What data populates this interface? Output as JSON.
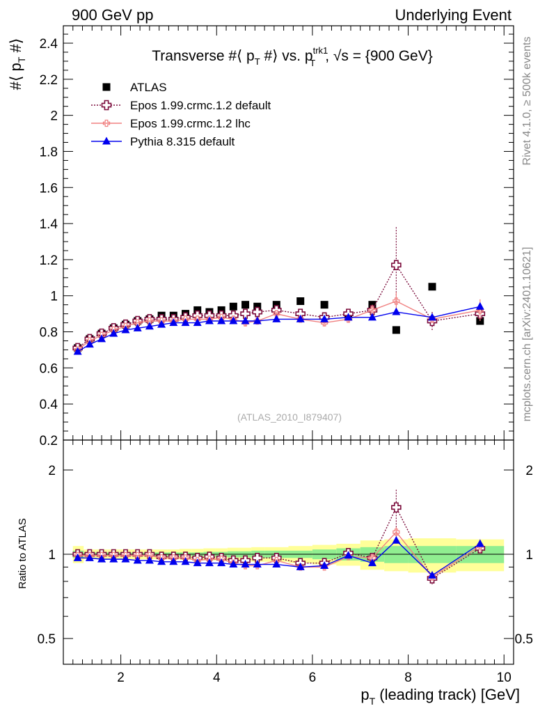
{
  "header": {
    "left": "900 GeV pp",
    "right": "Underlying Event"
  },
  "side_labels": {
    "rivet": "Rivet 4.1.0, ≥ 500k events",
    "mcplots": "mcplots.cern.ch [arXiv:2401.10621]"
  },
  "chart_data": [
    {
      "panel": "main",
      "type": "scatter",
      "title": {
        "prefix": "Transverse #⟨ p",
        "p_sub": "T",
        "mid": " #⟩ vs. p",
        "sup": "trk1",
        "sub2": "T",
        "suffix": ", √s = {900 GeV}"
      },
      "ylabel": {
        "main": "#⟨ p",
        "sub": "T",
        "end": " #⟩"
      },
      "xlim": [
        0.8,
        10.2
      ],
      "ylim": [
        0.2,
        2.5
      ],
      "yticks": [
        0.2,
        0.4,
        0.6,
        0.8,
        1,
        1.2,
        1.4,
        1.6,
        1.8,
        2,
        2.2,
        2.4
      ],
      "ytick_labels": [
        "0.2",
        "0.4",
        "0.6",
        "0.8",
        "1",
        "1.2",
        "1.4",
        "1.6",
        "1.8",
        "2",
        "2.2",
        "2.4"
      ],
      "watermark": "(ATLAS_2010_I879407)",
      "x": [
        1.1,
        1.35,
        1.6,
        1.85,
        2.1,
        2.35,
        2.6,
        2.85,
        3.1,
        3.35,
        3.6,
        3.85,
        4.1,
        4.35,
        4.6,
        4.85,
        5.25,
        5.75,
        6.25,
        6.75,
        7.25,
        7.75,
        8.5,
        9.5
      ],
      "series": [
        {
          "name": "ATLAS",
          "color": "#000000",
          "marker": "square",
          "values": [
            0.71,
            0.76,
            0.79,
            0.82,
            0.84,
            0.86,
            0.87,
            0.89,
            0.89,
            0.9,
            0.92,
            0.91,
            0.92,
            0.94,
            0.95,
            0.94,
            0.95,
            0.97,
            0.95,
            0.89,
            0.95,
            0.81,
            1.05,
            0.86
          ]
        },
        {
          "name": "Epos 1.99.crmc.1.2 default",
          "color": "#7a0a3a",
          "marker": "open-cross",
          "line": "dotted",
          "values": [
            0.71,
            0.76,
            0.79,
            0.82,
            0.84,
            0.86,
            0.87,
            0.87,
            0.87,
            0.88,
            0.89,
            0.89,
            0.89,
            0.89,
            0.9,
            0.91,
            0.92,
            0.9,
            0.88,
            0.9,
            0.92,
            1.17,
            0.86,
            0.9
          ],
          "errors": [
            0,
            0,
            0,
            0,
            0,
            0,
            0,
            0,
            0,
            0,
            0,
            0,
            0,
            0,
            0,
            0,
            0,
            0,
            0,
            0,
            0.02,
            0.21,
            0.05,
            0.02
          ]
        },
        {
          "name": "Epos 1.99.crmc.1.2 lhc",
          "color": "#f08080",
          "marker": "small-cross",
          "line": "solid",
          "values": [
            0.7,
            0.75,
            0.78,
            0.81,
            0.83,
            0.85,
            0.86,
            0.86,
            0.86,
            0.87,
            0.87,
            0.87,
            0.88,
            0.87,
            0.85,
            0.86,
            0.9,
            0.87,
            0.85,
            0.87,
            0.92,
            0.97,
            0.87,
            0.92
          ],
          "errors": [
            0,
            0,
            0,
            0,
            0,
            0,
            0,
            0,
            0,
            0,
            0,
            0,
            0,
            0,
            0.02,
            0.02,
            0.01,
            0.01,
            0.02,
            0.02,
            0.03,
            0.05,
            0.02,
            0.06
          ]
        },
        {
          "name": "Pythia 8.315 default",
          "color": "#0000ee",
          "marker": "triangle",
          "line": "solid",
          "values": [
            0.69,
            0.73,
            0.76,
            0.79,
            0.81,
            0.82,
            0.83,
            0.84,
            0.85,
            0.85,
            0.85,
            0.86,
            0.86,
            0.86,
            0.86,
            0.86,
            0.87,
            0.87,
            0.87,
            0.88,
            0.88,
            0.91,
            0.88,
            0.94
          ],
          "errors": [
            0,
            0,
            0,
            0,
            0,
            0,
            0,
            0,
            0,
            0,
            0,
            0,
            0,
            0,
            0,
            0,
            0,
            0,
            0,
            0,
            0,
            0,
            0,
            0
          ]
        }
      ]
    },
    {
      "panel": "ratio",
      "type": "scatter",
      "ylabel": "Ratio to ATLAS",
      "xlabel": {
        "p": "p",
        "sub": "T",
        "rest": " (leading track) [GeV]"
      },
      "scale": "log",
      "ylim": [
        0.4,
        2.4
      ],
      "yticks": [
        0.5,
        1,
        2
      ],
      "ytick_labels": [
        "0.5",
        "1",
        "2"
      ],
      "xticks": [
        2,
        4,
        6,
        8,
        10
      ],
      "xtick_labels": [
        "2",
        "4",
        "6",
        "8",
        "10"
      ],
      "x": [
        1.1,
        1.35,
        1.6,
        1.85,
        2.1,
        2.35,
        2.6,
        2.85,
        3.1,
        3.35,
        3.6,
        3.85,
        4.1,
        4.35,
        4.6,
        4.85,
        5.25,
        5.75,
        6.25,
        6.75,
        7.25,
        7.75,
        8.5,
        9.5
      ],
      "bands": {
        "stat_color": "#90ee90",
        "total_color": "#ffff99",
        "edges": [
          1.0,
          1.225,
          1.475,
          1.725,
          1.975,
          2.225,
          2.475,
          2.725,
          2.975,
          3.225,
          3.475,
          3.725,
          3.975,
          4.225,
          4.475,
          4.725,
          5.0,
          5.5,
          6.0,
          6.5,
          7.0,
          7.5,
          8.0,
          9.0,
          10.0
        ],
        "stat": [
          0.03,
          0.015,
          0.015,
          0.015,
          0.015,
          0.015,
          0.015,
          0.015,
          0.015,
          0.015,
          0.015,
          0.02,
          0.02,
          0.025,
          0.025,
          0.03,
          0.03,
          0.03,
          0.04,
          0.05,
          0.06,
          0.07,
          0.07,
          0.07
        ],
        "total": [
          0.07,
          0.04,
          0.04,
          0.04,
          0.04,
          0.04,
          0.04,
          0.04,
          0.04,
          0.045,
          0.045,
          0.05,
          0.05,
          0.055,
          0.055,
          0.06,
          0.06,
          0.07,
          0.08,
          0.09,
          0.12,
          0.13,
          0.14,
          0.13
        ]
      },
      "series": [
        {
          "name": "Epos 1.99.crmc.1.2 default",
          "color": "#7a0a3a",
          "marker": "open-cross",
          "line": "dotted",
          "values": [
            1.0,
            1.0,
            1.0,
            1.0,
            1.0,
            1.0,
            1.0,
            0.98,
            0.98,
            0.98,
            0.97,
            0.98,
            0.97,
            0.95,
            0.95,
            0.97,
            0.97,
            0.93,
            0.93,
            1.01,
            0.97,
            1.47,
            0.82,
            1.05
          ],
          "errors": [
            0,
            0,
            0,
            0,
            0,
            0,
            0,
            0,
            0,
            0,
            0,
            0,
            0,
            0,
            0,
            0,
            0,
            0,
            0,
            0,
            0.02,
            0.23,
            0.04,
            0.03
          ]
        },
        {
          "name": "Epos 1.99.crmc.1.2 lhc",
          "color": "#f08080",
          "marker": "small-cross",
          "line": "solid",
          "values": [
            0.99,
            0.99,
            0.99,
            0.99,
            0.99,
            0.99,
            0.99,
            0.97,
            0.97,
            0.97,
            0.95,
            0.96,
            0.96,
            0.93,
            0.91,
            0.91,
            0.95,
            0.9,
            0.9,
            0.98,
            0.97,
            1.2,
            0.83,
            1.07
          ],
          "errors": [
            0,
            0,
            0,
            0,
            0,
            0,
            0,
            0,
            0,
            0,
            0,
            0,
            0,
            0,
            0.02,
            0.02,
            0.01,
            0.01,
            0.02,
            0.02,
            0.03,
            0.05,
            0.02,
            0.06
          ]
        },
        {
          "name": "Pythia 8.315 default",
          "color": "#0000ee",
          "marker": "triangle",
          "line": "solid",
          "values": [
            0.97,
            0.97,
            0.96,
            0.96,
            0.96,
            0.95,
            0.95,
            0.94,
            0.94,
            0.94,
            0.93,
            0.93,
            0.93,
            0.92,
            0.92,
            0.92,
            0.92,
            0.9,
            0.91,
            0.99,
            0.93,
            1.12,
            0.84,
            1.09
          ],
          "errors": [
            0,
            0,
            0,
            0,
            0,
            0,
            0,
            0,
            0,
            0,
            0,
            0,
            0,
            0,
            0,
            0,
            0,
            0,
            0,
            0,
            0,
            0,
            0,
            0.03
          ]
        }
      ]
    }
  ]
}
